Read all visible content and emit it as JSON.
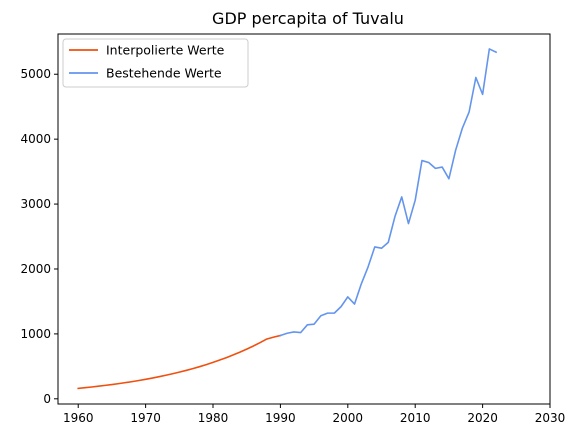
{
  "chart_data": {
    "type": "line",
    "title": "GDP percapita of Tuvalu",
    "xlabel": "",
    "ylabel": "",
    "xlim": [
      1957,
      2030
    ],
    "ylim": [
      -80,
      5620
    ],
    "x_ticks": [
      1960,
      1970,
      1980,
      1990,
      2000,
      2010,
      2020,
      2030
    ],
    "y_ticks": [
      0,
      1000,
      2000,
      3000,
      4000,
      5000
    ],
    "grid": false,
    "legend_position": "top-left",
    "series": [
      {
        "name": "Interpolierte Werte",
        "color": "#f0500f",
        "x": [
          1960,
          1961,
          1962,
          1963,
          1964,
          1965,
          1966,
          1967,
          1968,
          1969,
          1970,
          1971,
          1972,
          1973,
          1974,
          1975,
          1976,
          1977,
          1978,
          1979,
          1980,
          1981,
          1982,
          1983,
          1984,
          1985,
          1986,
          1987,
          1988,
          1989,
          1990
        ],
        "y": [
          160,
          171,
          182,
          194,
          207,
          220,
          234,
          249,
          265,
          282,
          300,
          320,
          341,
          363,
          386,
          411,
          437,
          465,
          495,
          527,
          561,
          597,
          635,
          676,
          719,
          765,
          814,
          866,
          922,
          950,
          975
        ]
      },
      {
        "name": "Bestehende Werte",
        "color": "#6495ed",
        "x": [
          1990,
          1991,
          1992,
          1993,
          1994,
          1995,
          1996,
          1997,
          1998,
          1999,
          2000,
          2001,
          2002,
          2003,
          2004,
          2005,
          2006,
          2007,
          2008,
          2009,
          2010,
          2011,
          2012,
          2013,
          2014,
          2015,
          2016,
          2017,
          2018,
          2019,
          2020,
          2021,
          2022
        ],
        "y": [
          975,
          1010,
          1030,
          1020,
          1140,
          1150,
          1280,
          1320,
          1320,
          1420,
          1570,
          1460,
          1770,
          2030,
          2340,
          2320,
          2410,
          2810,
          3110,
          2700,
          3060,
          3670,
          3640,
          3550,
          3570,
          3390,
          3830,
          4170,
          4420,
          4950,
          4690,
          5390,
          5340
        ]
      }
    ]
  }
}
